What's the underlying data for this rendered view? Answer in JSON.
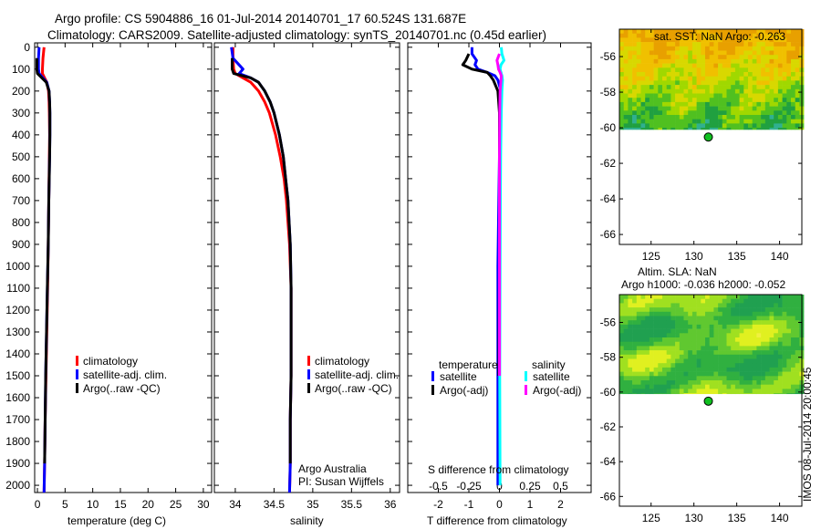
{
  "chart_data": [
    {
      "type": "line",
      "id": "temperature",
      "title_line1": "Argo profile: CS 5904886_16 01-Jul-2014 20140701_17 60.524S 131.687E",
      "title_line2": "Climatology: CARS2009. Satellite-adjusted climatology: synTS_20140701.nc (0.45d earlier)",
      "xlabel": "temperature (deg C)",
      "xlim": [
        -0.5,
        31.5
      ],
      "ylim": [
        2033,
        -20
      ],
      "xticks": [
        0,
        5,
        10,
        15,
        20,
        25,
        30
      ],
      "yticks": [
        0,
        100,
        200,
        300,
        400,
        500,
        600,
        700,
        800,
        900,
        1000,
        1100,
        1200,
        1300,
        1400,
        1500,
        1600,
        1700,
        1800,
        1900,
        2000
      ],
      "depth": [
        0,
        50,
        100,
        120,
        140,
        160,
        200,
        250,
        300,
        400,
        500,
        700,
        900,
        1100,
        1300,
        1500,
        1700,
        1900,
        2033
      ],
      "series": [
        {
          "name": "climatology",
          "color": "#ff0000",
          "values": [
            1.2,
            1.0,
            0.9,
            0.9,
            1.3,
            1.7,
            2.0,
            2.1,
            2.15,
            2.2,
            2.15,
            2.05,
            1.95,
            1.85,
            1.7,
            1.55,
            1.4,
            1.3,
            1.2
          ]
        },
        {
          "name": "satellite-adj. clim.",
          "color": "#0000ff",
          "values": [
            0.3,
            0.2,
            0.2,
            0.3,
            1.0,
            1.7,
            2.1,
            2.2,
            2.25,
            2.25,
            2.2,
            2.05,
            1.95,
            1.8,
            1.65,
            1.5,
            1.4,
            1.3,
            1.2
          ]
        },
        {
          "name": "Argo(..raw -QC)",
          "color": "#000000",
          "depth_start": 30,
          "values": [
            null,
            -0.1,
            -0.1,
            0.0,
            0.8,
            1.6,
            2.1,
            2.2,
            2.25,
            2.25,
            2.2,
            2.05,
            1.95,
            1.8,
            1.65,
            1.5,
            1.4,
            1.3,
            null
          ]
        }
      ],
      "legend": [
        "climatology",
        "satellite-adj. clim.",
        "Argo(..raw -QC)"
      ]
    },
    {
      "type": "line",
      "id": "salinity",
      "xlabel": "salinity",
      "xlim": [
        33.73,
        36.12
      ],
      "ylim": [
        2033,
        -20
      ],
      "xticks": [
        34,
        34.5,
        35,
        35.5,
        36
      ],
      "depth": [
        0,
        50,
        100,
        120,
        140,
        160,
        200,
        250,
        300,
        400,
        500,
        600,
        700,
        900,
        1100,
        1300,
        1500,
        1700,
        1900,
        2033
      ],
      "series": [
        {
          "name": "climatology",
          "color": "#ff0000",
          "values": [
            33.97,
            33.97,
            33.98,
            34.0,
            34.1,
            34.2,
            34.3,
            34.38,
            34.44,
            34.52,
            34.58,
            34.63,
            34.66,
            34.7,
            34.72,
            34.72,
            34.72,
            34.71,
            34.71,
            34.7
          ]
        },
        {
          "name": "satellite-adj. clim.",
          "color": "#0000ff",
          "values": [
            33.95,
            33.97,
            34.1,
            34.05,
            34.2,
            34.3,
            34.38,
            34.45,
            34.5,
            34.57,
            34.62,
            34.65,
            34.68,
            34.71,
            34.72,
            34.72,
            34.72,
            34.71,
            34.71,
            34.7
          ]
        },
        {
          "name": "Argo(..raw -QC)",
          "color": "#000000",
          "values": [
            null,
            33.96,
            33.96,
            33.98,
            34.2,
            34.3,
            34.38,
            34.45,
            34.5,
            34.57,
            34.62,
            34.65,
            34.68,
            34.71,
            34.72,
            34.72,
            34.72,
            34.71,
            34.71,
            null
          ]
        }
      ],
      "legend": [
        "climatology",
        "satellite-adj. clim.",
        "Argo(..raw -QC)"
      ],
      "annotation_line1": "Argo Australia",
      "annotation_line2": "PI: Susan Wijffels"
    },
    {
      "type": "line",
      "id": "difference",
      "xlabel": "T difference from climatology",
      "x2label": "S difference from climatology",
      "xlim": [
        -3,
        3
      ],
      "ylim": [
        2033,
        -20
      ],
      "xticks": [
        -2,
        -1,
        0,
        1,
        2
      ],
      "x2ticks": [
        -0.5,
        -0.25,
        0,
        0.25,
        0.5
      ],
      "depth": [
        0,
        30,
        60,
        80,
        100,
        115,
        130,
        150,
        200,
        300,
        500,
        700,
        1000,
        1500,
        2000
      ],
      "series": [
        {
          "name": "temperature satellite",
          "color": "#0000ff",
          "values": [
            -0.9,
            -0.9,
            -0.75,
            -0.8,
            -0.7,
            -0.4,
            -0.15,
            -0.05,
            0.05,
            0.05,
            0.0,
            -0.02,
            -0.05,
            -0.05,
            -0.05
          ]
        },
        {
          "name": "temperature Argo(-adj)",
          "color": "#000000",
          "values": [
            null,
            -1.0,
            -1.1,
            -1.2,
            -0.9,
            -0.4,
            -0.3,
            -0.2,
            -0.05,
            0.0,
            0.0,
            0.0,
            0.0,
            -0.02,
            null
          ]
        },
        {
          "name": "salinity satellite",
          "color": "#00ffff",
          "values": [
            0.06,
            0.08,
            0.15,
            0.05,
            0.02,
            0.05,
            0.08,
            0.1,
            0.08,
            0.06,
            0.04,
            0.03,
            0.02,
            0.01,
            0.02
          ]
        },
        {
          "name": "salinity Argo(-adj)",
          "color": "#ff00ff",
          "values": [
            null,
            0.0,
            -0.08,
            -0.05,
            -0.03,
            0.02,
            0.06,
            0.05,
            0.02,
            0.01,
            0.0,
            0.0,
            0.0,
            0.0,
            null
          ]
        }
      ],
      "legend_temperature_title": "temperature",
      "legend_salinity_title": "salinity",
      "legend_labels": [
        "satellite",
        "Argo(-adj)",
        "satellite",
        "Argo(-adj)"
      ]
    },
    {
      "type": "heatmap",
      "id": "sst-map",
      "title": "sat. SST: NaN Argo: -0.263",
      "xlim": [
        121.3,
        142.6
      ],
      "ylim": [
        -66.56,
        -54.46
      ],
      "xticks": [
        125,
        130,
        135,
        140
      ],
      "yticks": [
        -56,
        -58,
        -60,
        -62,
        -64,
        -66
      ],
      "data_lat_range": [
        -60.1,
        -54.46
      ],
      "colors": [
        "#e8a000",
        "#f0c000",
        "#d8d800",
        "#a0d800",
        "#50c020",
        "#20a040",
        "#30b090",
        "#30c0c0"
      ],
      "float_position": {
        "lon": 131.687,
        "lat": -60.524
      },
      "float_color": "#10c020"
    },
    {
      "type": "heatmap",
      "id": "sla-map",
      "title_line1": "Altim. SLA: NaN",
      "title_line2": "Argo h1000: -0.036 h2000: -0.052",
      "xlim": [
        121.3,
        142.6
      ],
      "ylim": [
        -66.56,
        -54.4
      ],
      "xticks": [
        125,
        130,
        135,
        140
      ],
      "yticks": [
        -56,
        -58,
        -60,
        -62,
        -64,
        -66
      ],
      "data_lat_range": [
        -60.1,
        -54.4
      ],
      "colors": [
        "#20a050",
        "#30b040",
        "#60c830",
        "#a0e020",
        "#e0f020",
        "#f0f040",
        "#30a080"
      ],
      "float_position": {
        "lon": 131.687,
        "lat": -60.524
      },
      "float_color": "#10c020"
    }
  ],
  "footer_stamp": "IMOS 08-Jul-2014 20:00:45"
}
